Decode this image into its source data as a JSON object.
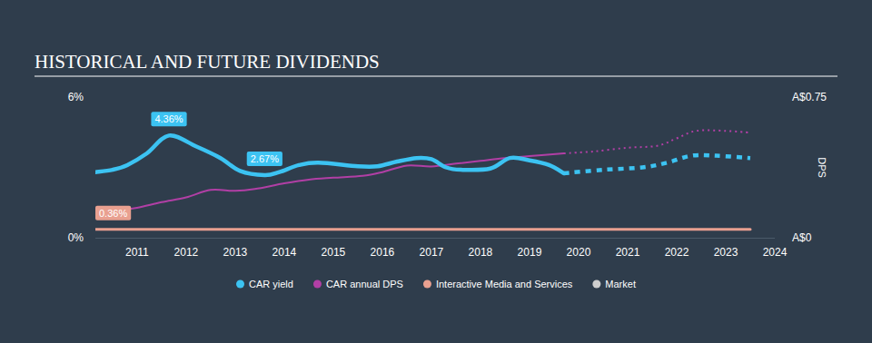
{
  "chart_data": {
    "type": "line",
    "title": "HISTORICAL AND FUTURE DIVIDENDS",
    "y2_label": "DPS",
    "xlim": [
      2010.15,
      2024
    ],
    "xticks": [
      2011,
      2012,
      2013,
      2014,
      2015,
      2016,
      2017,
      2018,
      2019,
      2020,
      2021,
      2022,
      2023,
      2024
    ],
    "ylim": [
      0,
      6
    ],
    "yticks": [
      {
        "value": 0,
        "label": "0%"
      },
      {
        "value": 6,
        "label": "6%"
      }
    ],
    "y2lim": [
      0,
      0.75
    ],
    "y2ticks": [
      {
        "value": 0,
        "label": "A$0"
      },
      {
        "value": 0.75,
        "label": "A$0.75"
      }
    ],
    "grid": false,
    "legend": "bottom",
    "series": [
      {
        "name": "CAR yield",
        "color": "#3cc3f2",
        "line_style": "solid",
        "x": [
          2010.15,
          2010.5,
          2010.8,
          2011.2,
          2011.65,
          2012.2,
          2012.7,
          2013.1,
          2013.6,
          2013.9,
          2014.3,
          2014.7,
          2015.5,
          2015.9,
          2016.3,
          2016.7,
          2017.0,
          2017.3,
          2017.6,
          2018.2,
          2018.6,
          2019.0,
          2019.4,
          2019.7
        ],
        "values": [
          2.8,
          2.9,
          3.1,
          3.6,
          4.36,
          3.9,
          3.4,
          2.85,
          2.67,
          2.8,
          3.1,
          3.2,
          3.05,
          3.05,
          3.25,
          3.4,
          3.35,
          3.0,
          2.9,
          2.95,
          3.4,
          3.3,
          3.1,
          2.75
        ]
      },
      {
        "name": "CAR yield",
        "color": "#3cc3f2",
        "line_style": "dotted",
        "x": [
          2019.7,
          2020.5,
          2021.3,
          2021.8,
          2022.3,
          2022.8,
          2023.5
        ],
        "values": [
          2.75,
          2.9,
          3.0,
          3.2,
          3.5,
          3.5,
          3.4
        ]
      },
      {
        "name": "CAR annual DPS",
        "color": "#b13fa5",
        "line_style": "solid",
        "axis": "y2",
        "x": [
          2010.15,
          2010.6,
          2011.0,
          2011.5,
          2012.0,
          2012.5,
          2013.0,
          2013.4,
          2014.0,
          2014.5,
          2015.0,
          2015.6,
          2016.0,
          2016.5,
          2017.0,
          2017.5,
          2018.0,
          2018.5,
          2019.0,
          2019.7
        ],
        "values": [
          0.14,
          0.145,
          0.16,
          0.19,
          0.215,
          0.255,
          0.25,
          0.26,
          0.29,
          0.31,
          0.32,
          0.33,
          0.35,
          0.385,
          0.38,
          0.395,
          0.41,
          0.425,
          0.435,
          0.45
        ]
      },
      {
        "name": "CAR annual DPS",
        "color": "#b13fa5",
        "line_style": "dotted",
        "axis": "y2",
        "x": [
          2019.7,
          2020.3,
          2021.0,
          2021.6,
          2022.0,
          2022.4,
          2023.0,
          2023.5
        ],
        "values": [
          0.45,
          0.46,
          0.48,
          0.49,
          0.53,
          0.57,
          0.57,
          0.56
        ]
      },
      {
        "name": "Interactive Media and Services",
        "color": "#e9a090",
        "line_style": "solid",
        "x": [
          2010.15,
          2023.5
        ],
        "values": [
          0.36,
          0.36
        ]
      },
      {
        "name": "Market",
        "color": "#cfcfcf",
        "line_style": "solid",
        "x": [
          2010.15,
          2023.5
        ],
        "values": [
          null,
          null
        ]
      }
    ],
    "annotations": [
      {
        "label": "4.36%",
        "x": 2011.65,
        "value": 4.36,
        "color": "#3cc3f2"
      },
      {
        "label": "2.67%",
        "x": 2013.6,
        "value": 2.67,
        "color": "#3cc3f2"
      },
      {
        "label": "0.36%",
        "x": 2010.15,
        "value": 0.36,
        "color": "#e9a090"
      }
    ]
  }
}
